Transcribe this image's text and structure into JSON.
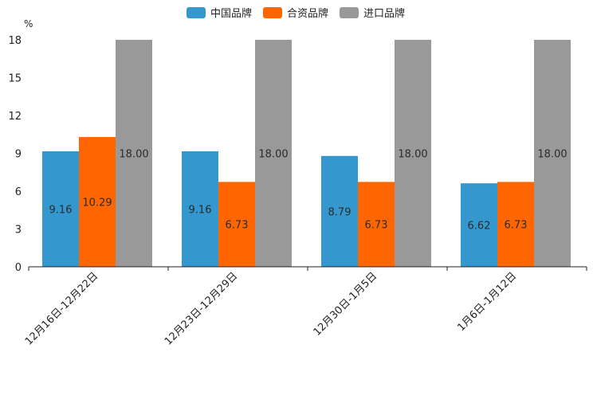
{
  "chart_data": {
    "type": "bar",
    "unit_label": "%",
    "ylim": [
      0,
      18
    ],
    "yticks": [
      0,
      3,
      6,
      9,
      12,
      15,
      18
    ],
    "categories": [
      "12月16日-12月22日",
      "12月23日-12月29日",
      "12月30日-1月5日",
      "1月6日-1月12日"
    ],
    "series": [
      {
        "name": "中国品牌",
        "color": "#3498cf",
        "values": [
          9.16,
          9.16,
          8.79,
          6.62
        ],
        "labels": [
          "9.16",
          "9.16",
          "8.79",
          "6.62"
        ]
      },
      {
        "name": "合资品牌",
        "color": "#ff6600",
        "values": [
          10.29,
          6.73,
          6.73,
          6.73
        ],
        "labels": [
          "10.29",
          "6.73",
          "6.73",
          "6.73"
        ]
      },
      {
        "name": "进口品牌",
        "color": "#999999",
        "values": [
          18.0,
          18.0,
          18.0,
          18.0
        ],
        "labels": [
          "18.00",
          "18.00",
          "18.00",
          "18.00"
        ]
      }
    ]
  }
}
